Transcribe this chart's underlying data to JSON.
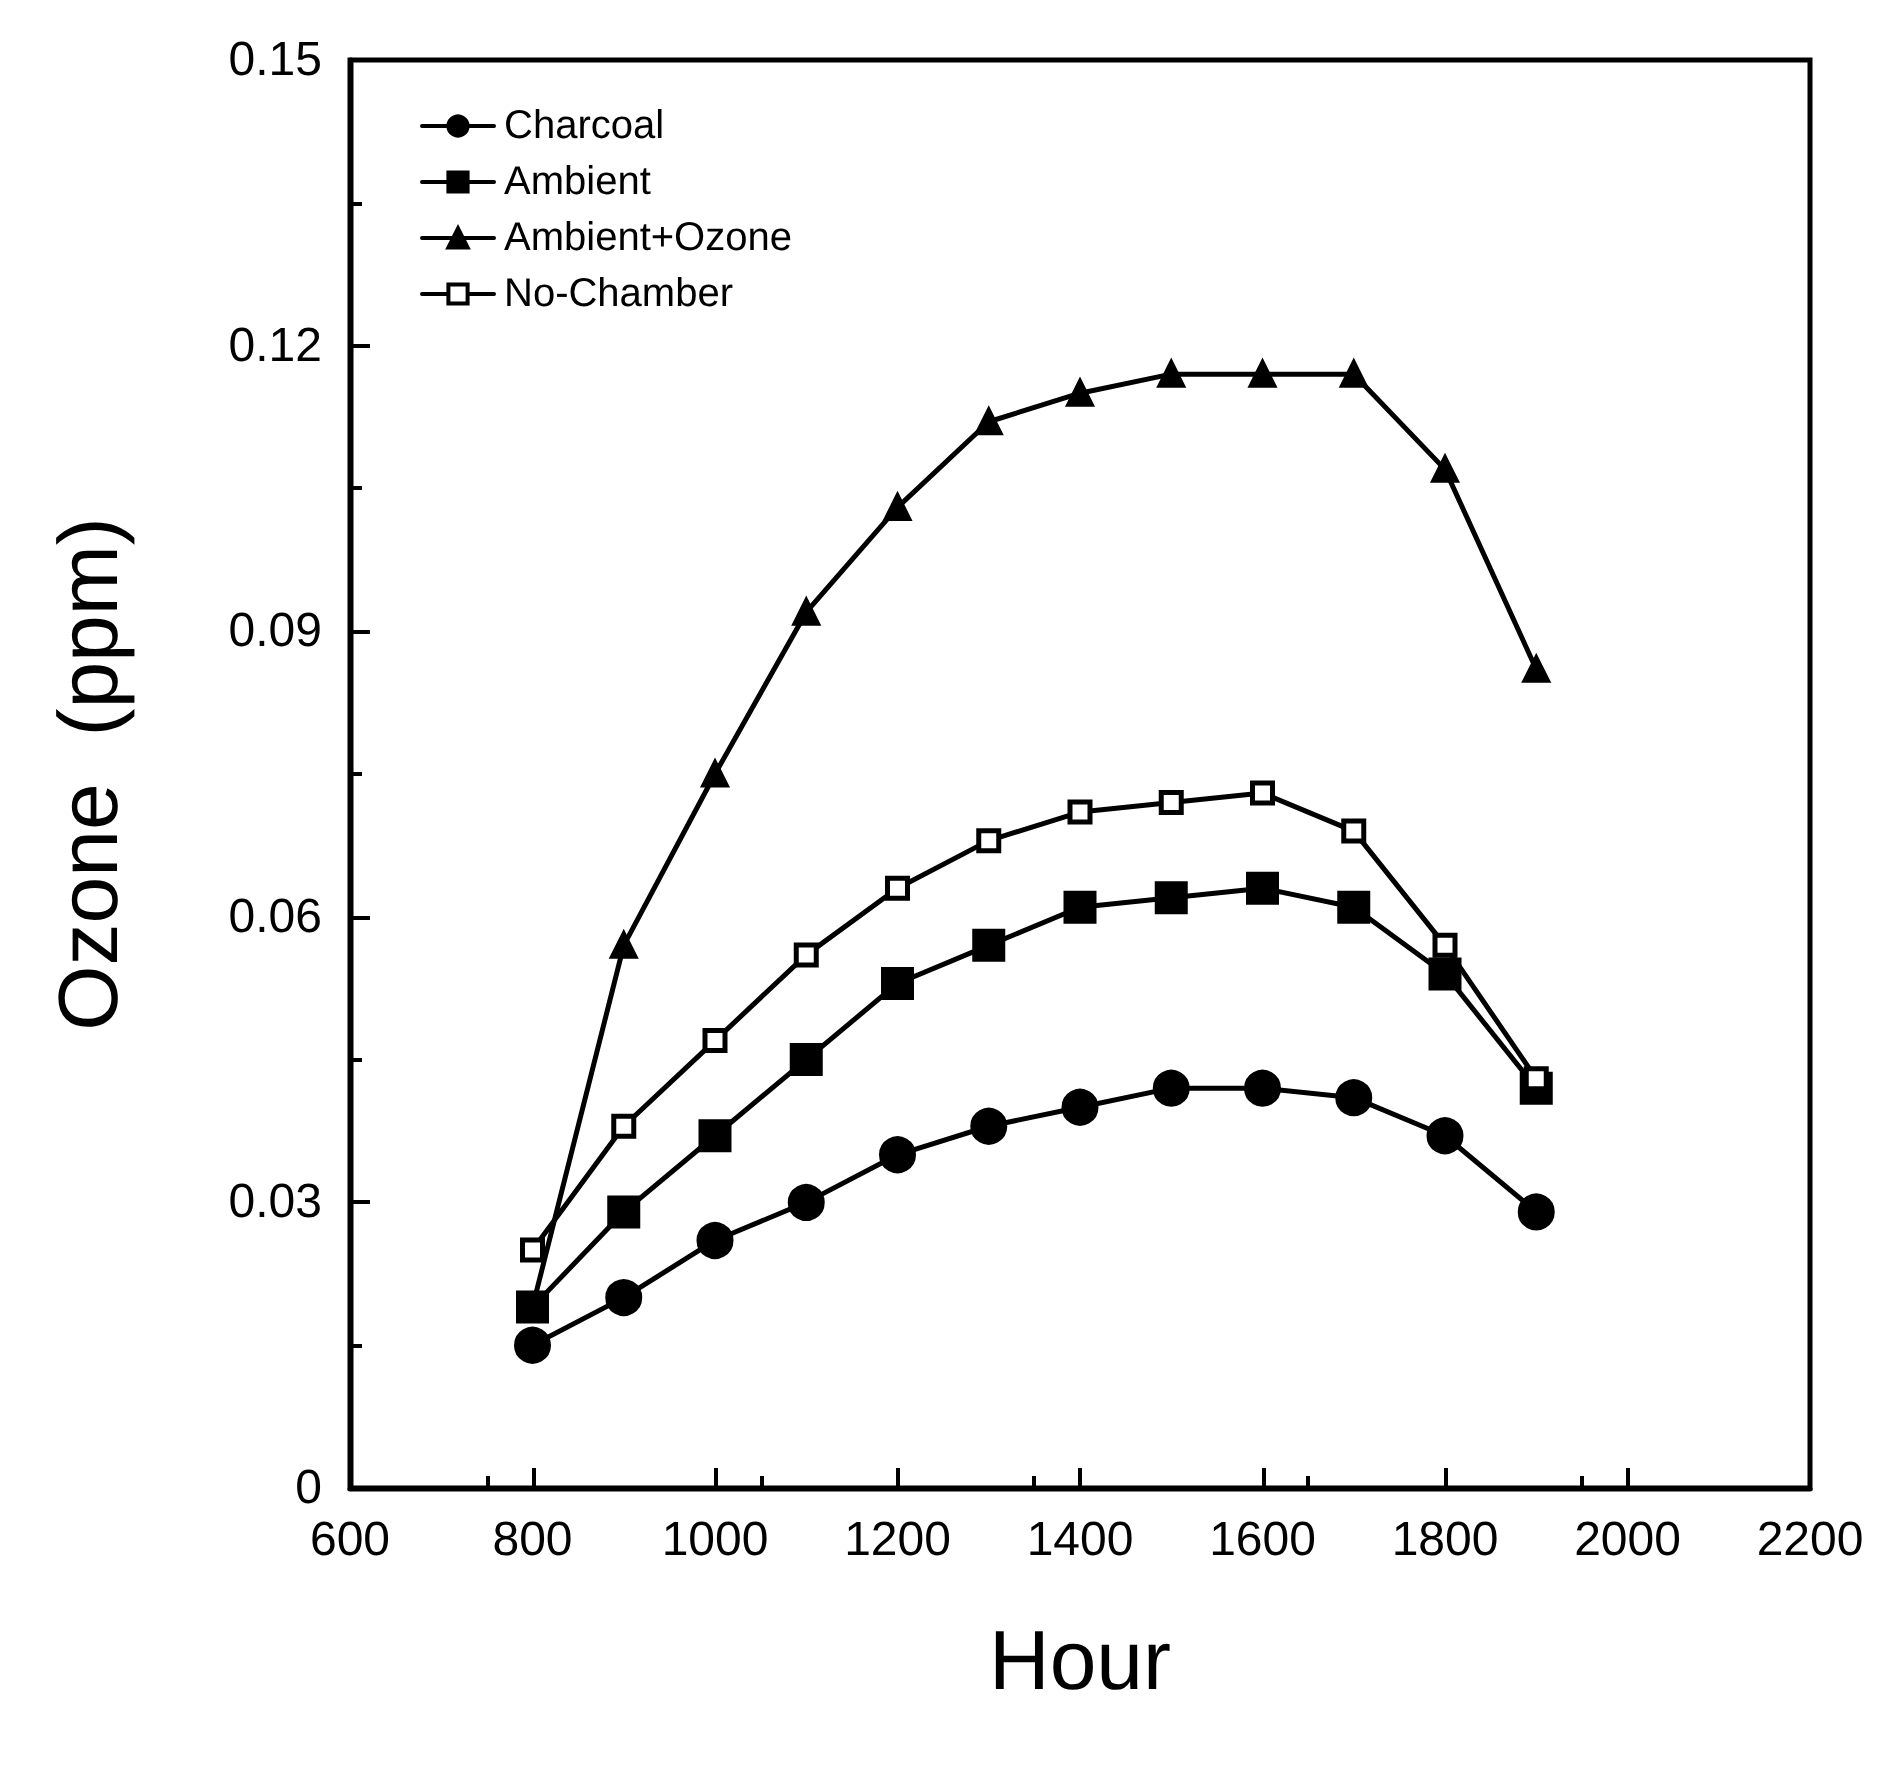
{
  "chart_data": {
    "type": "line",
    "xlabel": "Hour",
    "ylabel": "Ozone  (ppm)",
    "x": [
      800,
      900,
      1000,
      1100,
      1200,
      1300,
      1400,
      1500,
      1600,
      1700,
      1800,
      1900
    ],
    "series": [
      {
        "name": "Charcoal",
        "color": "#000000",
        "marker": "circle",
        "values": [
          0.015,
          0.02,
          0.026,
          0.03,
          0.035,
          0.038,
          0.04,
          0.042,
          0.042,
          0.041,
          0.037,
          0.029
        ]
      },
      {
        "name": "Ambient",
        "color": "#000000",
        "marker": "square",
        "values": [
          0.019,
          0.029,
          0.037,
          0.045,
          0.053,
          0.057,
          0.061,
          0.062,
          0.063,
          0.061,
          0.054,
          0.042
        ]
      },
      {
        "name": "Ambient+Ozone",
        "color": "#000000",
        "marker": "triangle",
        "values": [
          0.019,
          0.057,
          0.075,
          0.092,
          0.103,
          0.112,
          0.115,
          0.117,
          0.117,
          0.117,
          0.107,
          0.086
        ]
      },
      {
        "name": "No-Chamber",
        "color": "#000000",
        "marker": "square",
        "values": [
          0.025,
          0.038,
          0.047,
          0.056,
          0.063,
          0.068,
          0.071,
          0.072,
          0.073,
          0.069,
          0.057,
          0.043
        ]
      }
    ],
    "xlim": [
      600,
      2200
    ],
    "xticks": [
      600,
      800,
      1000,
      1200,
      1400,
      1600,
      1800,
      2000,
      2200
    ],
    "ylim": [
      0,
      0.15
    ],
    "yticks": [
      0,
      0.03,
      0.06,
      0.09,
      0.12,
      0.15
    ],
    "grid": false,
    "legend": "top left",
    "line_style": "solid"
  }
}
